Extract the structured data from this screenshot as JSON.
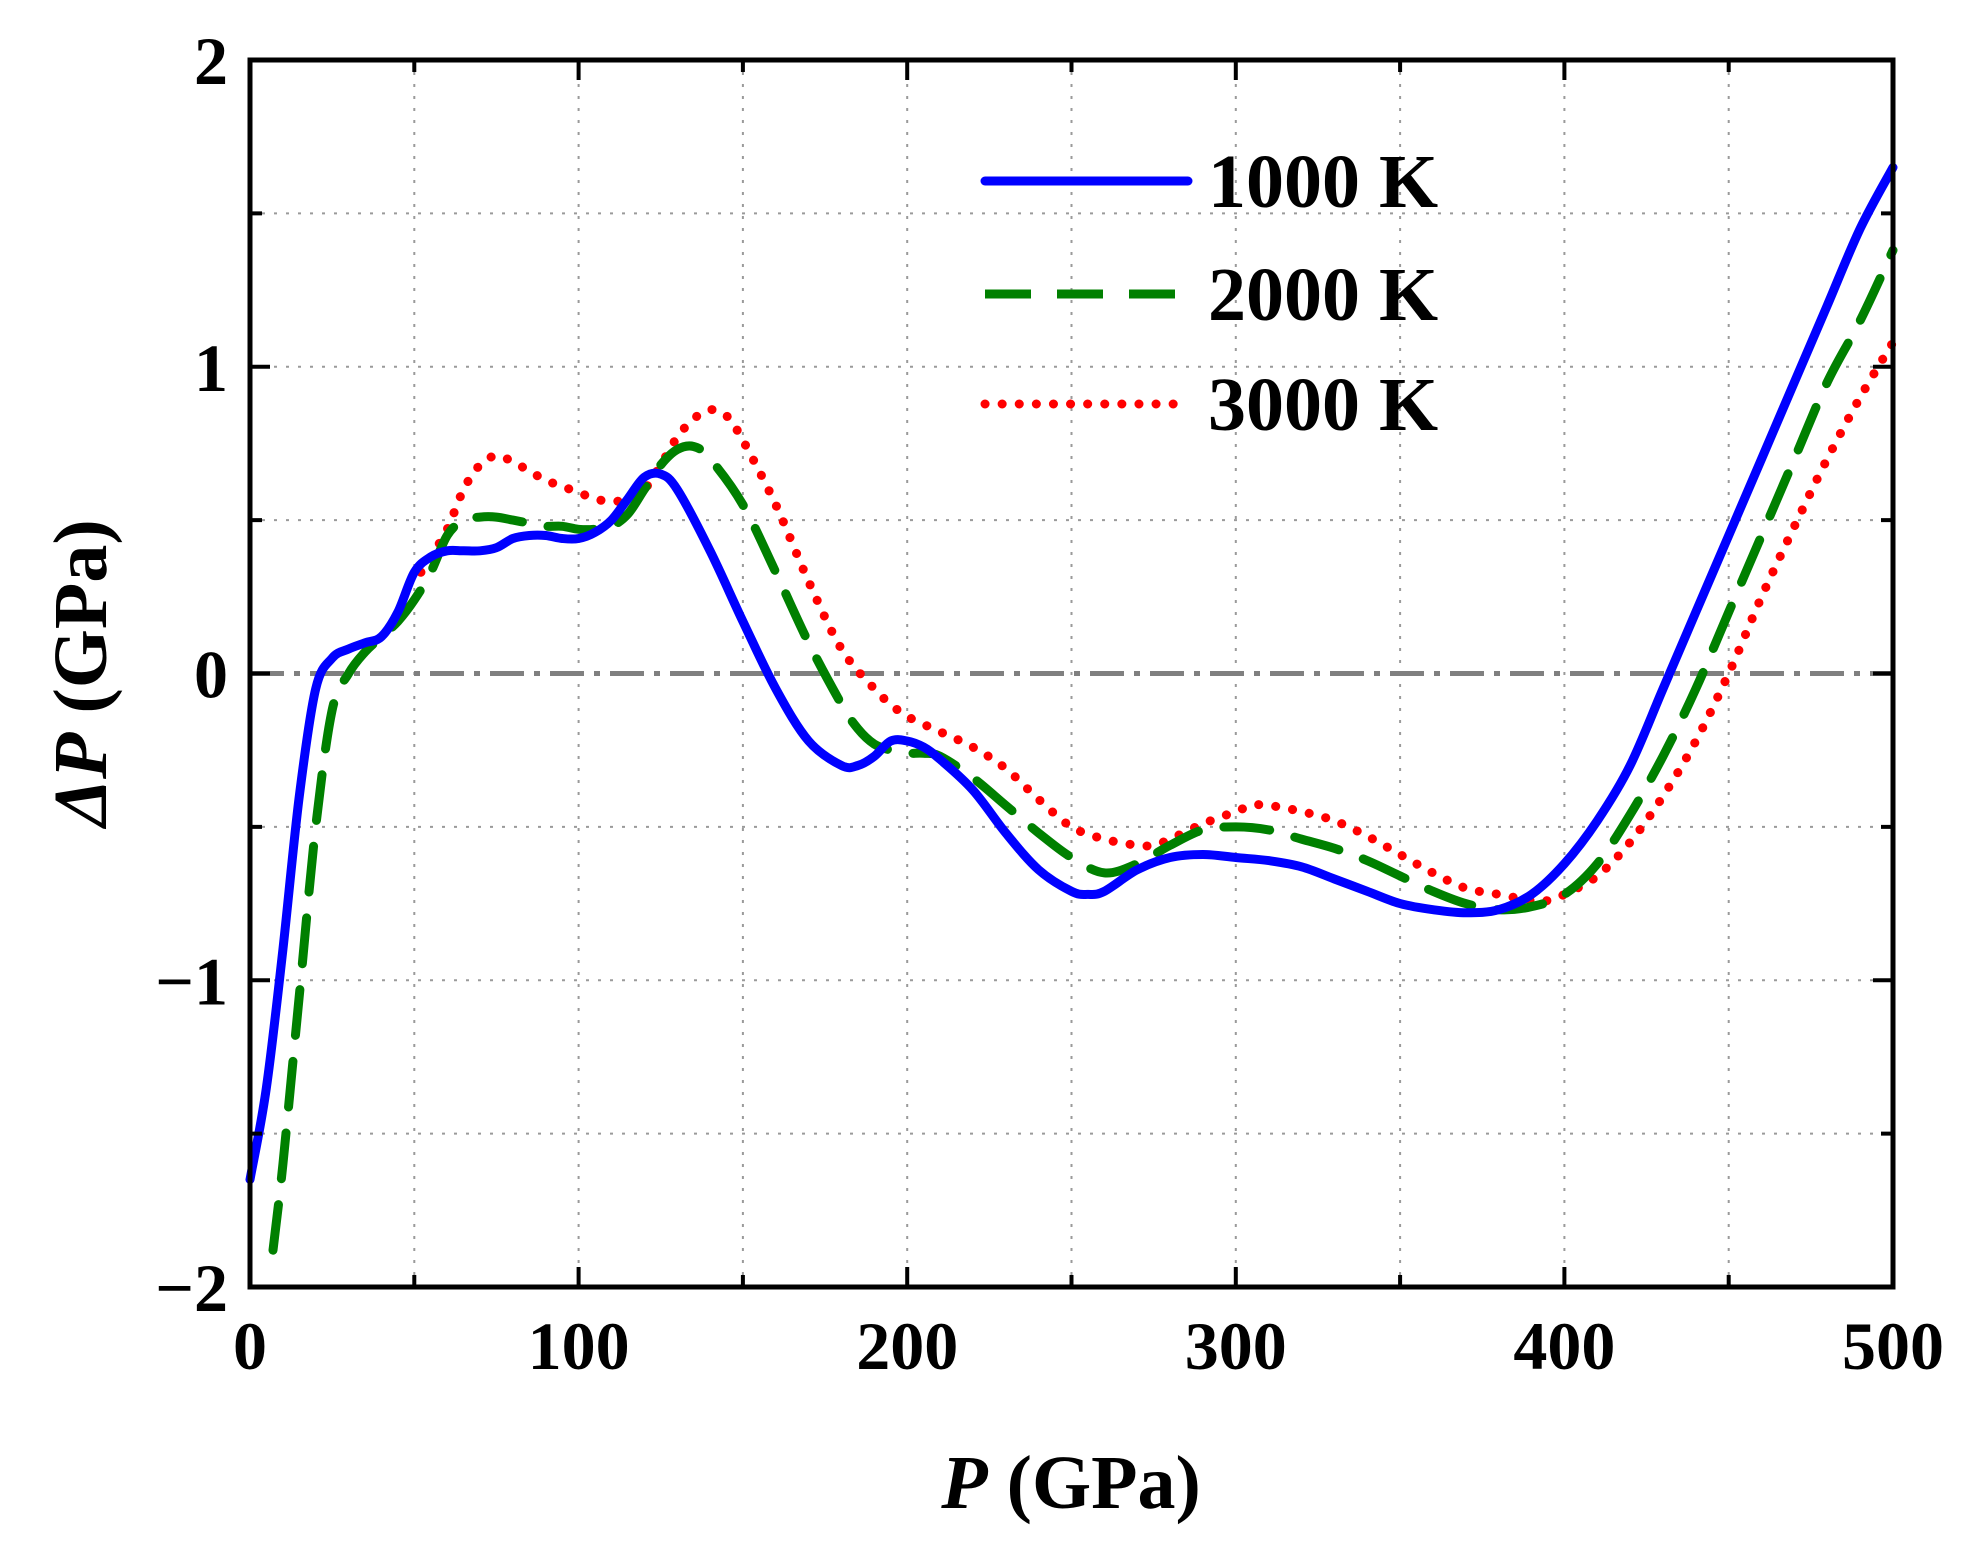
{
  "chart_data": {
    "type": "line",
    "title": "",
    "xlabel_symbol": "P",
    "xlabel_unit": " (GPa)",
    "ylabel_symbol": "ΔP",
    "ylabel_unit": " (GPa)",
    "xlim": [
      0,
      500
    ],
    "ylim": [
      -2,
      2
    ],
    "xticks": [
      0,
      100,
      200,
      300,
      400,
      500
    ],
    "xtick_labels": [
      "0",
      "100",
      "200",
      "300",
      "400",
      "500"
    ],
    "yticks": [
      -2,
      -1,
      0,
      1,
      2
    ],
    "ytick_labels": [
      "−2",
      "−1",
      "0",
      "1",
      "2"
    ],
    "grid": true,
    "reference_line": {
      "y": 0,
      "style": "dash-dot",
      "color": "#808080"
    },
    "legend_position": "top-right",
    "series": [
      {
        "name": "1000 K",
        "color": "#0000ff",
        "style": "solid",
        "x": [
          0,
          5,
          10,
          15,
          20,
          25,
          30,
          35,
          40,
          45,
          50,
          55,
          60,
          65,
          70,
          75,
          80,
          85,
          90,
          95,
          100,
          105,
          110,
          115,
          120,
          125,
          130,
          140,
          150,
          160,
          170,
          180,
          185,
          190,
          195,
          200,
          205,
          210,
          220,
          230,
          240,
          250,
          255,
          260,
          270,
          280,
          290,
          300,
          310,
          320,
          330,
          340,
          350,
          360,
          370,
          380,
          390,
          400,
          410,
          420,
          430,
          440,
          450,
          460,
          470,
          480,
          490,
          500
        ],
        "y": [
          -1.65,
          -1.35,
          -0.9,
          -0.4,
          -0.05,
          0.05,
          0.08,
          0.1,
          0.12,
          0.2,
          0.33,
          0.38,
          0.4,
          0.4,
          0.4,
          0.41,
          0.44,
          0.45,
          0.45,
          0.44,
          0.44,
          0.46,
          0.5,
          0.57,
          0.64,
          0.65,
          0.6,
          0.4,
          0.17,
          -0.05,
          -0.22,
          -0.3,
          -0.3,
          -0.27,
          -0.22,
          -0.22,
          -0.24,
          -0.28,
          -0.38,
          -0.52,
          -0.64,
          -0.71,
          -0.72,
          -0.71,
          -0.64,
          -0.6,
          -0.59,
          -0.6,
          -0.61,
          -0.63,
          -0.67,
          -0.71,
          -0.75,
          -0.77,
          -0.78,
          -0.77,
          -0.72,
          -0.62,
          -0.48,
          -0.3,
          -0.05,
          0.2,
          0.45,
          0.7,
          0.95,
          1.2,
          1.45,
          1.65
        ]
      },
      {
        "name": "2000 K",
        "color": "#008000",
        "style": "dashed",
        "x": [
          7,
          10,
          15,
          20,
          25,
          30,
          35,
          40,
          45,
          50,
          55,
          60,
          65,
          70,
          75,
          80,
          85,
          90,
          95,
          100,
          105,
          110,
          115,
          120,
          125,
          130,
          135,
          140,
          150,
          160,
          170,
          180,
          185,
          190,
          195,
          200,
          205,
          210,
          220,
          230,
          240,
          250,
          260,
          270,
          280,
          290,
          300,
          310,
          320,
          330,
          340,
          350,
          360,
          370,
          380,
          390,
          400,
          410,
          420,
          430,
          440,
          450,
          460,
          470,
          480,
          490,
          500
        ],
        "y": [
          -1.88,
          -1.6,
          -1.05,
          -0.5,
          -0.12,
          0.0,
          0.07,
          0.12,
          0.17,
          0.24,
          0.33,
          0.45,
          0.5,
          0.51,
          0.51,
          0.5,
          0.49,
          0.48,
          0.48,
          0.47,
          0.47,
          0.48,
          0.52,
          0.6,
          0.68,
          0.73,
          0.74,
          0.7,
          0.55,
          0.33,
          0.1,
          -0.1,
          -0.18,
          -0.23,
          -0.25,
          -0.26,
          -0.26,
          -0.27,
          -0.34,
          -0.43,
          -0.52,
          -0.6,
          -0.65,
          -0.62,
          -0.56,
          -0.51,
          -0.5,
          -0.51,
          -0.54,
          -0.57,
          -0.61,
          -0.66,
          -0.71,
          -0.75,
          -0.77,
          -0.76,
          -0.72,
          -0.62,
          -0.46,
          -0.27,
          -0.05,
          0.2,
          0.45,
          0.7,
          0.95,
          1.15,
          1.38
        ]
      },
      {
        "name": "3000 K",
        "color": "#ff0000",
        "style": "dotted",
        "x": [
          52,
          55,
          60,
          65,
          70,
          75,
          80,
          85,
          90,
          95,
          100,
          105,
          110,
          115,
          120,
          125,
          130,
          135,
          140,
          145,
          150,
          160,
          170,
          180,
          190,
          195,
          200,
          210,
          220,
          230,
          240,
          250,
          260,
          270,
          275,
          280,
          290,
          300,
          305,
          310,
          320,
          330,
          340,
          350,
          360,
          370,
          380,
          390,
          395,
          400,
          410,
          420,
          430,
          440,
          450,
          460,
          470,
          480,
          490,
          500
        ],
        "y": [
          0.33,
          0.38,
          0.47,
          0.6,
          0.68,
          0.71,
          0.69,
          0.66,
          0.63,
          0.61,
          0.59,
          0.57,
          0.56,
          0.57,
          0.6,
          0.68,
          0.77,
          0.83,
          0.86,
          0.84,
          0.76,
          0.55,
          0.3,
          0.08,
          -0.05,
          -0.1,
          -0.14,
          -0.19,
          -0.24,
          -0.31,
          -0.41,
          -0.5,
          -0.54,
          -0.56,
          -0.56,
          -0.54,
          -0.49,
          -0.45,
          -0.43,
          -0.43,
          -0.45,
          -0.48,
          -0.53,
          -0.59,
          -0.65,
          -0.7,
          -0.72,
          -0.74,
          -0.74,
          -0.72,
          -0.66,
          -0.55,
          -0.4,
          -0.22,
          0.0,
          0.25,
          0.48,
          0.7,
          0.9,
          1.08
        ]
      }
    ]
  }
}
